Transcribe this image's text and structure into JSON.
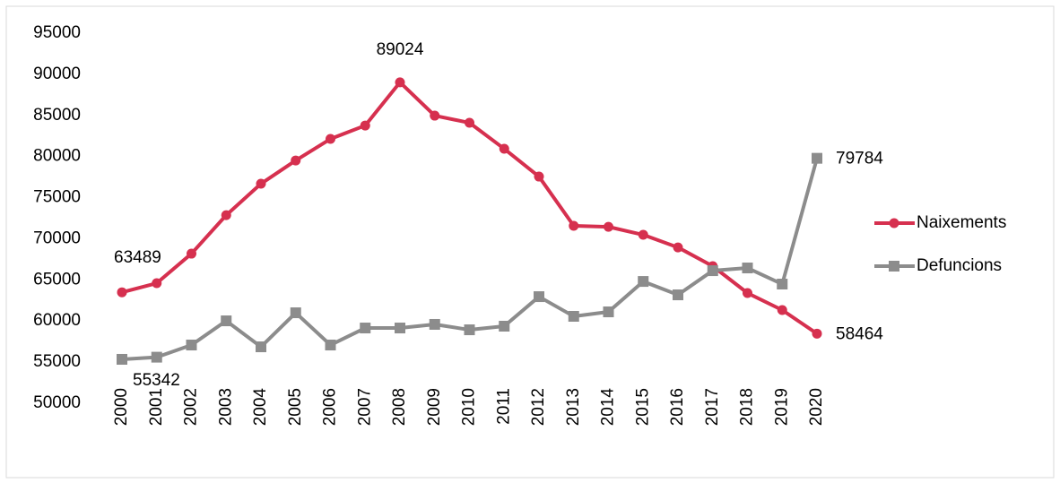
{
  "chart_data": {
    "type": "line",
    "categories": [
      "2000",
      "2001",
      "2002",
      "2003",
      "2004",
      "2005",
      "2006",
      "2007",
      "2008",
      "2009",
      "2010",
      "2011",
      "2012",
      "2013",
      "2014",
      "2015",
      "2016",
      "2017",
      "2018",
      "2019",
      "2020"
    ],
    "series": [
      {
        "name": "Naixements",
        "color": "#d6304f",
        "marker": "circle",
        "values": [
          63489,
          64600,
          68190,
          72870,
          76690,
          79520,
          82140,
          83770,
          89024,
          84970,
          84100,
          80940,
          77560,
          71570,
          71450,
          70480,
          68950,
          66670,
          63400,
          61330,
          58464
        ],
        "value_labels": [
          "63489",
          null,
          null,
          null,
          null,
          null,
          null,
          null,
          "89024",
          null,
          null,
          null,
          null,
          null,
          null,
          null,
          null,
          null,
          null,
          null,
          "58464"
        ]
      },
      {
        "name": "Defuncions",
        "color": "#8c8c8c",
        "marker": "square",
        "values": [
          55342,
          55600,
          57080,
          60020,
          56860,
          61000,
          57080,
          59150,
          59150,
          59590,
          58930,
          59370,
          62960,
          60570,
          61110,
          64810,
          63180,
          66120,
          66450,
          64490,
          79784
        ],
        "value_labels": [
          "55342",
          null,
          null,
          null,
          null,
          null,
          null,
          null,
          null,
          null,
          null,
          null,
          null,
          null,
          null,
          null,
          null,
          null,
          null,
          null,
          "79784"
        ]
      }
    ],
    "ylim": [
      50000,
      95000
    ],
    "yticks": [
      50000,
      55000,
      60000,
      65000,
      70000,
      75000,
      80000,
      85000,
      90000,
      95000
    ],
    "grid": false,
    "legend": "right"
  }
}
